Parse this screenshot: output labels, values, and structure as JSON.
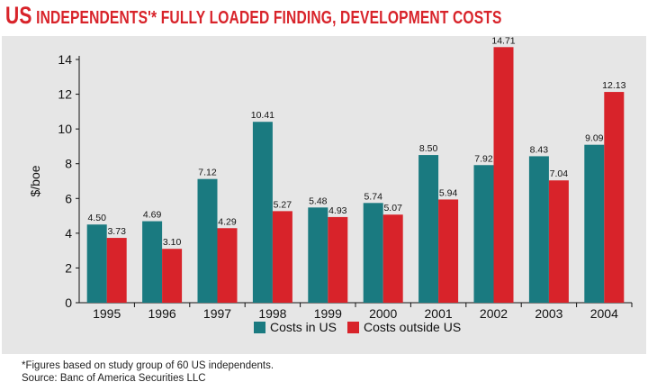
{
  "title": {
    "prefix": "US",
    "main": "INDEPENDENTS'* FULLY LOADED FINDING, DEVELOPMENT COSTS"
  },
  "footnote": {
    "line1": "*Figures based on study group of 60 US independents.",
    "line2": "Source: Banc of America Securities LLC"
  },
  "chart_data": {
    "type": "bar",
    "title": "US INDEPENDENTS'* FULLY LOADED FINDING, DEVELOPMENT COSTS",
    "xlabel": "",
    "ylabel": "$/boe",
    "ylim": [
      0,
      14
    ],
    "yticks": [
      0,
      2,
      4,
      6,
      8,
      10,
      12,
      14
    ],
    "grid": false,
    "legend_position": "bottom-center",
    "categories": [
      "1995",
      "1996",
      "1997",
      "1998",
      "1999",
      "2000",
      "2001",
      "2002",
      "2003",
      "2004"
    ],
    "series": [
      {
        "name": "Costs in US",
        "color": "#1a7a80",
        "values": [
          4.5,
          4.69,
          7.12,
          10.41,
          5.48,
          5.74,
          8.5,
          7.92,
          8.43,
          9.09
        ],
        "labels": [
          "4.50",
          "4.69",
          "7.12",
          "10.41",
          "5.48",
          "5.74",
          "8.50",
          "7.92",
          "8.43",
          "9.09"
        ]
      },
      {
        "name": "Costs outside US",
        "color": "#d8232a",
        "values": [
          3.73,
          3.1,
          4.29,
          5.27,
          4.93,
          5.07,
          5.94,
          14.71,
          7.04,
          12.13
        ],
        "labels": [
          "3.73",
          "3.10",
          "4.29",
          "5.27",
          "4.93",
          "5.07",
          "5.94",
          "14.71",
          "7.04",
          "12.13"
        ]
      }
    ]
  }
}
